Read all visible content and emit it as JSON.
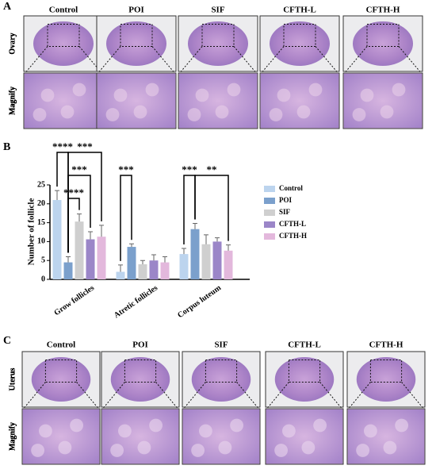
{
  "panel_a": {
    "label": "A",
    "columns": [
      "Control",
      "POI",
      "SIF",
      "CFTH-L",
      "CFTH-H"
    ],
    "rows": [
      "Ovary",
      "Magnify"
    ]
  },
  "chart_data": {
    "type": "bar",
    "panel_label": "B",
    "ylabel": "Number of follicle",
    "categories": [
      "Grow follicles",
      "Atretic follicles",
      "Corpus luteum"
    ],
    "series": [
      {
        "name": "Control",
        "color": "#bcd4ee",
        "values": [
          21,
          2,
          6.7
        ],
        "errors": [
          2.5,
          1.8,
          1.5
        ]
      },
      {
        "name": "POI",
        "color": "#7ba0cc",
        "values": [
          4.5,
          8.6,
          13.3
        ],
        "errors": [
          1.5,
          0.8,
          1.5
        ]
      },
      {
        "name": "SIF",
        "color": "#cfcfcf",
        "values": [
          15.3,
          4,
          9.3
        ],
        "errors": [
          2,
          1,
          2.5
        ]
      },
      {
        "name": "CFTH-L",
        "color": "#9b86c8",
        "values": [
          10.6,
          5,
          10
        ],
        "errors": [
          2,
          1.5,
          1
        ]
      },
      {
        "name": "CFTH-H",
        "color": "#e3b8dc",
        "values": [
          11.3,
          4.5,
          7.6
        ],
        "errors": [
          3,
          1.5,
          1.5
        ]
      }
    ],
    "ylim": [
      0,
      25
    ],
    "yticks": [
      0,
      5,
      10,
      15,
      20,
      25
    ],
    "annotations": [
      {
        "label": "****",
        "category": "Grow follicles",
        "between": [
          "Control",
          "POI"
        ]
      },
      {
        "label": "***",
        "category": "Grow follicles",
        "between": [
          "POI",
          "CFTH-H"
        ]
      },
      {
        "label": "***",
        "category": "Grow follicles",
        "between": [
          "POI",
          "CFTH-L"
        ]
      },
      {
        "label": "****",
        "category": "Grow follicles",
        "between": [
          "POI",
          "SIF"
        ]
      },
      {
        "label": "***",
        "category": "Atretic follicles",
        "between": [
          "Control",
          "POI"
        ]
      },
      {
        "label": "***",
        "category": "Corpus luteum",
        "between": [
          "Control",
          "POI"
        ]
      },
      {
        "label": "**",
        "category": "Corpus luteum",
        "between": [
          "POI",
          "CFTH-H"
        ]
      }
    ]
  },
  "panel_c": {
    "label": "C",
    "columns": [
      "Control",
      "POI",
      "SIF",
      "CFTH-L",
      "CFTH-H"
    ],
    "rows": [
      "Uterus",
      "Magnify"
    ]
  }
}
